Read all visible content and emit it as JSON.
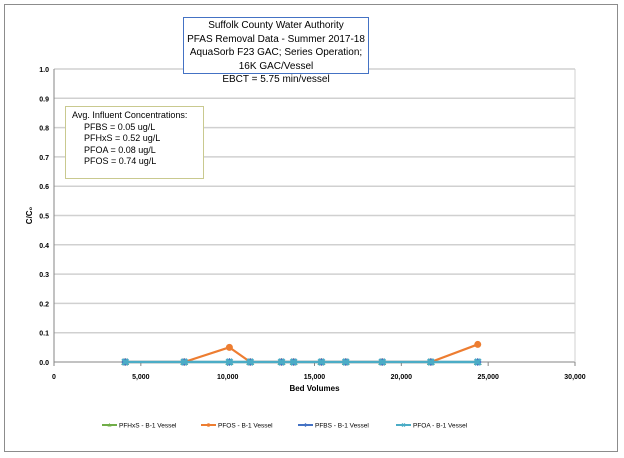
{
  "chart_data": {
    "type": "line",
    "title": [
      "Suffolk County Water Authority",
      "PFAS Removal Data  - Summer 2017-18",
      "AquaSorb F23 GAC; Series Operation; 16K GAC/Vessel",
      "EBCT = 5.75 min/vessel"
    ],
    "xlabel": "Bed Volumes",
    "ylabel": "C/C₀",
    "xlim": [
      0,
      30000
    ],
    "ylim": [
      0,
      1.0
    ],
    "xticks": [
      "0",
      "5,000",
      "10,000",
      "15,000",
      "20,000",
      "25,000",
      "30,000"
    ],
    "yticks": [
      "0.0",
      "0.1",
      "0.2",
      "0.3",
      "0.4",
      "0.5",
      "0.6",
      "0.7",
      "0.8",
      "0.9",
      "1.0"
    ],
    "grid": "horizontal",
    "legend_placement": "bottom",
    "annotation": {
      "heading": "Avg. Influent Concentrations:",
      "lines": [
        "PFBS = 0.05 ug/L",
        "PFHxS = 0.52 ug/L",
        "PFOA = 0.08 ug/L",
        "PFOS = 0.74 ug/L"
      ]
    },
    "x": [
      4100,
      7500,
      10100,
      11300,
      13100,
      13800,
      15400,
      16800,
      18900,
      21700,
      24400
    ],
    "series": [
      {
        "name": "PFHxS - B-1 Vessel",
        "color": "#70ad47",
        "marker": "triangle",
        "values": [
          0,
          0,
          0,
          0,
          0,
          0,
          0,
          0,
          0,
          0,
          0
        ]
      },
      {
        "name": "PFOS - B-1 Vessel",
        "color": "#ed7d31",
        "marker": "circle",
        "values": [
          0,
          0,
          0.05,
          0,
          0,
          0,
          0,
          0,
          0,
          0,
          0.06
        ]
      },
      {
        "name": "PFBS - B-1 Vessel",
        "color": "#4472c4",
        "marker": "diamond",
        "values": [
          0,
          0,
          0,
          0,
          0,
          0,
          0,
          0,
          0,
          0,
          0
        ]
      },
      {
        "name": "PFOA - B-1 Vessel",
        "color": "#4bacc6",
        "marker": "x",
        "values": [
          0,
          0,
          0,
          0,
          0,
          0,
          0,
          0,
          0,
          0,
          0
        ]
      }
    ]
  }
}
